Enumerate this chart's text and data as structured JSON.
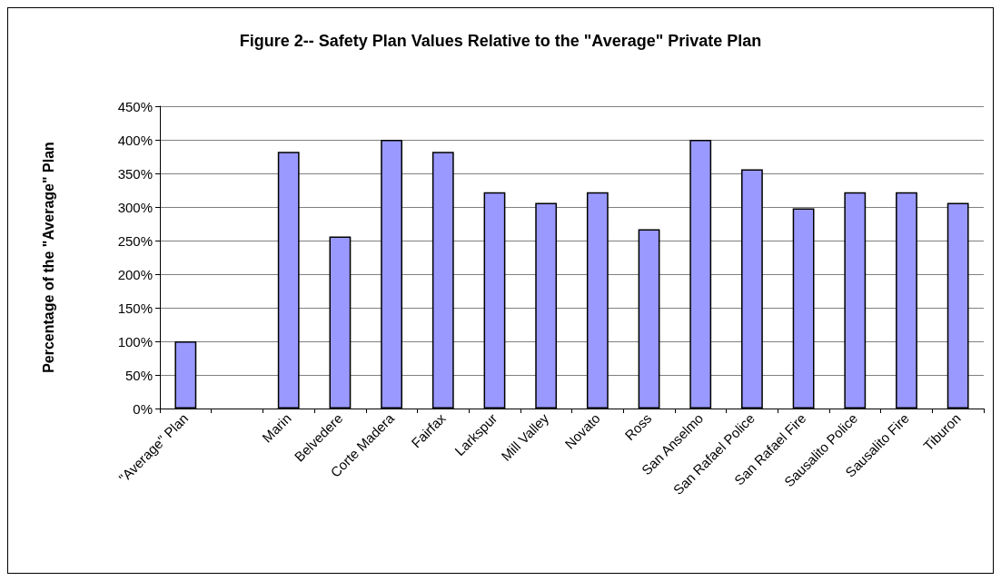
{
  "chart_data": {
    "type": "bar",
    "title": "Figure 2-- Safety Plan Values Relative to the \"Average\" Private Plan",
    "ylabel": "Percentage of the \"Average\" Plan",
    "categories": [
      "\"Average\" Plan",
      null,
      "Marin",
      "Belvedere",
      "Corte Madera",
      "Fairfax",
      "Larkspur",
      "Mill Valley",
      "Novato",
      "Ross",
      "San Anselmo",
      "San Rafael Police",
      "San Rafael Fire",
      "Sausalito Police",
      "Sausalito Fire",
      "Tiburon"
    ],
    "values": [
      100,
      null,
      382,
      256,
      400,
      382,
      322,
      306,
      322,
      267,
      400,
      356,
      298,
      322,
      322,
      306
    ],
    "color": "#9999ff",
    "ylim": [
      0,
      450
    ],
    "yticks": [
      {
        "value": 0,
        "label": "0%"
      },
      {
        "value": 50,
        "label": "50%"
      },
      {
        "value": 100,
        "label": "100%"
      },
      {
        "value": 150,
        "label": "150%"
      },
      {
        "value": 200,
        "label": "200%"
      },
      {
        "value": 250,
        "label": "250%"
      },
      {
        "value": 300,
        "label": "300%"
      },
      {
        "value": 350,
        "label": "350%"
      },
      {
        "value": 400,
        "label": "400%"
      },
      {
        "value": 450,
        "label": "450%"
      }
    ],
    "grid": "y"
  }
}
